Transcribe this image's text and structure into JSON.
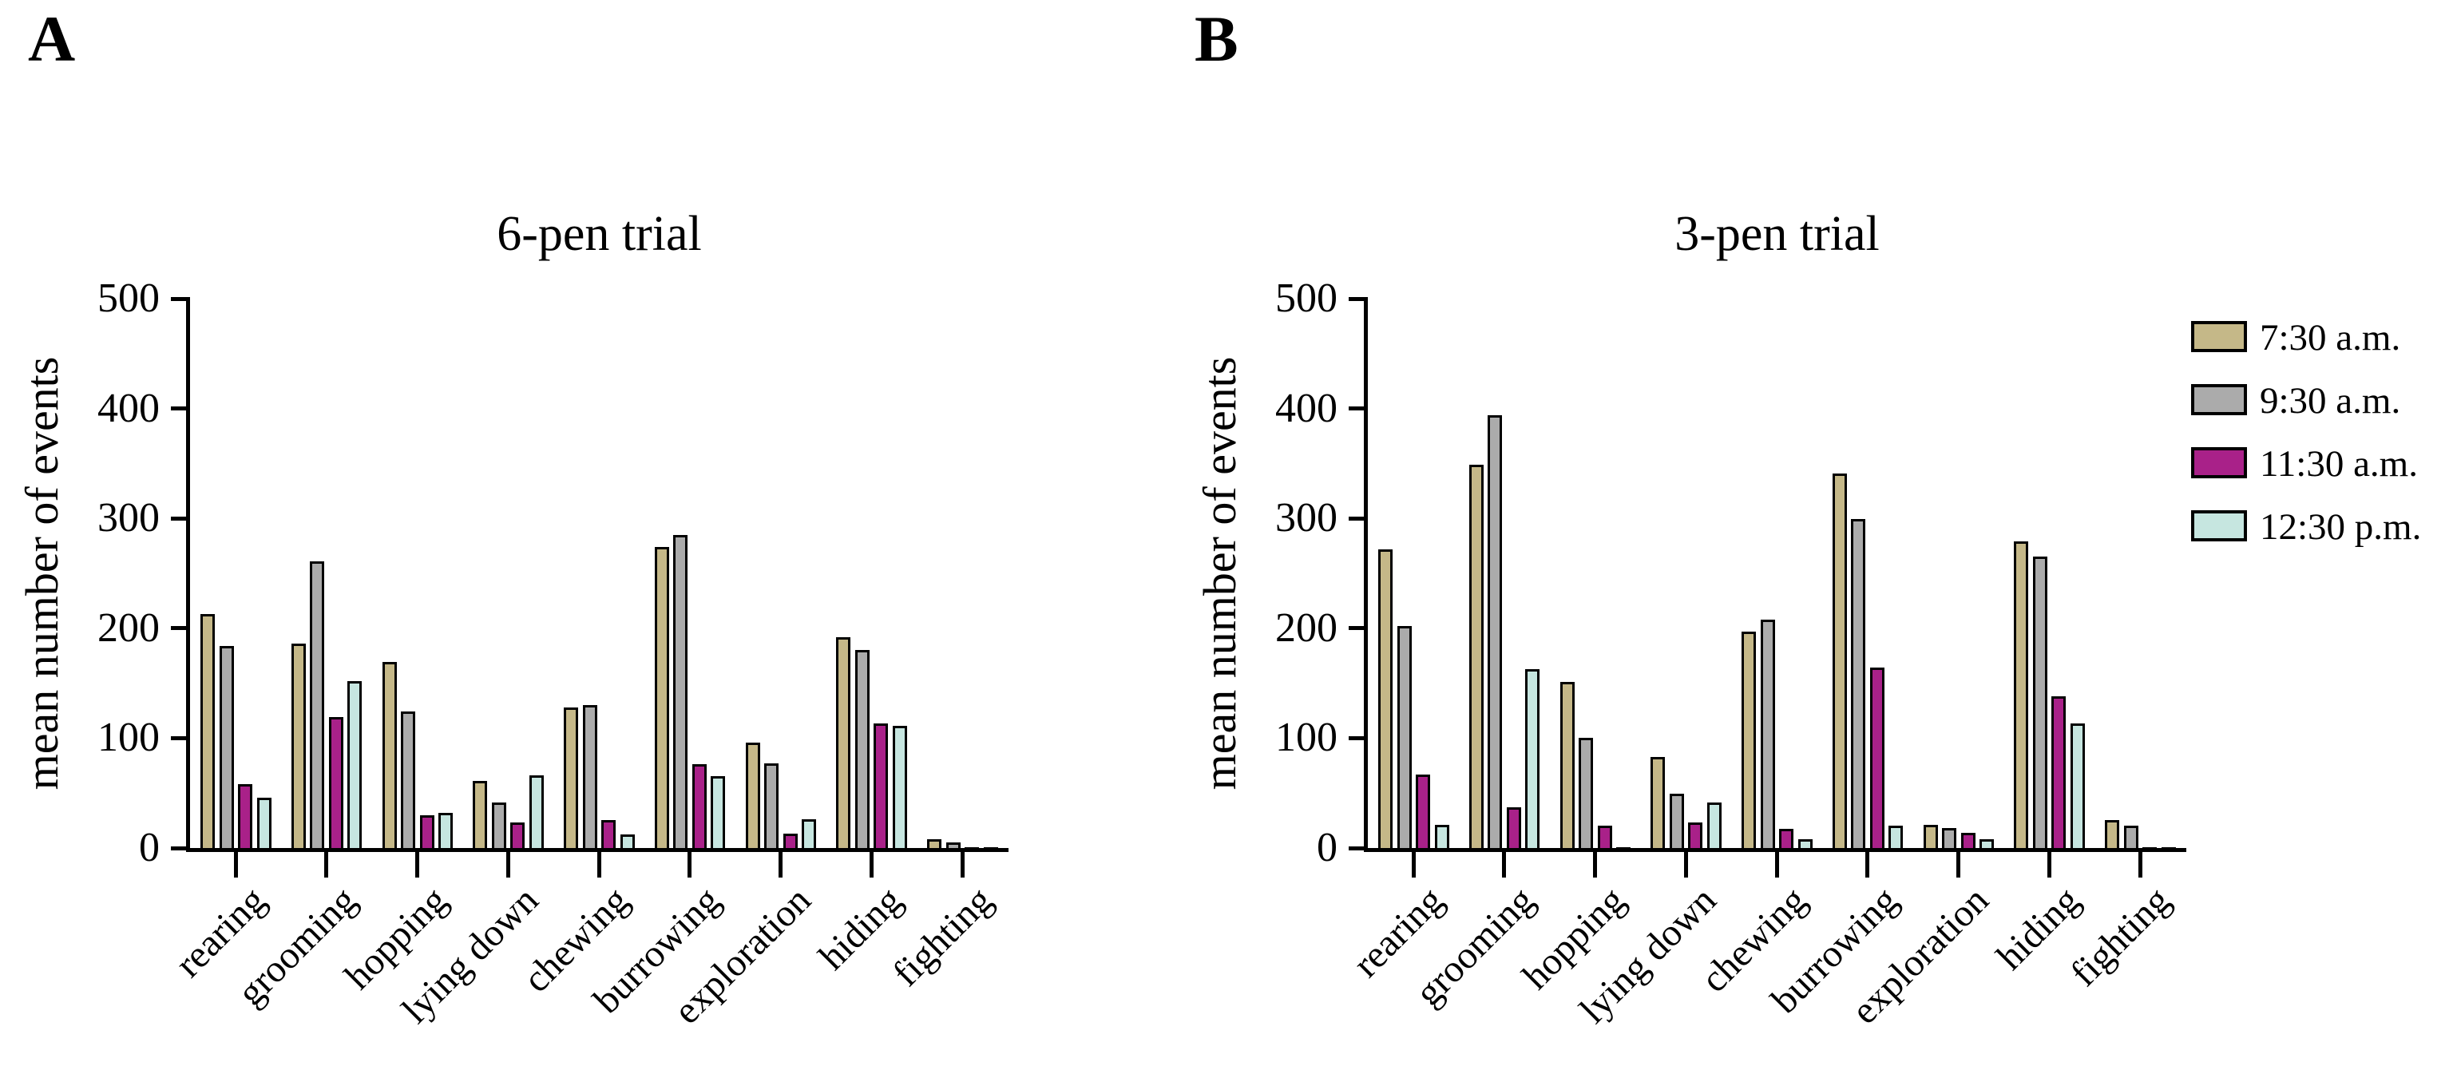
{
  "figure": {
    "panel_a_letter": "A",
    "panel_b_letter": "B"
  },
  "legend": {
    "position": "right of panel B",
    "entries": [
      {
        "label": "7:30 a.m.",
        "color": "#C5B888"
      },
      {
        "label": "9:30 a.m.",
        "color": "#ABABAB"
      },
      {
        "label": "11:30 a.m.",
        "color": "#A92189"
      },
      {
        "label": "12:30 p.m.",
        "color": "#C6E6E0"
      }
    ]
  },
  "chart_data": [
    {
      "type": "bar",
      "panel": "A",
      "title": "6-pen trial",
      "xlabel": "",
      "ylabel": "mean number of events",
      "ylim": [
        0,
        500
      ],
      "yticks": [
        0,
        100,
        200,
        300,
        400,
        500
      ],
      "grid": false,
      "legend_shown": false,
      "categories": [
        "rearing",
        "grooming",
        "hopping",
        "lying down",
        "chewing",
        "burrowing",
        "exploration",
        "hiding",
        "fighting"
      ],
      "series": [
        {
          "name": "7:30 a.m.",
          "color": "#C5B888",
          "values": [
            216,
            189,
            172,
            64,
            131,
            277,
            99,
            195,
            11
          ]
        },
        {
          "name": "9:30 a.m.",
          "color": "#ABABAB",
          "values": [
            187,
            264,
            127,
            44,
            133,
            288,
            80,
            183,
            8
          ]
        },
        {
          "name": "11:30 a.m.",
          "color": "#A92189",
          "values": [
            61,
            122,
            33,
            26,
            28,
            79,
            16,
            116,
            1
          ]
        },
        {
          "name": "12:30 p.m.",
          "color": "#C6E6E0",
          "values": [
            49,
            155,
            35,
            69,
            15,
            68,
            29,
            114,
            2
          ]
        }
      ]
    },
    {
      "type": "bar",
      "panel": "B",
      "title": "3-pen trial",
      "xlabel": "",
      "ylabel": "mean number of events",
      "ylim": [
        0,
        500
      ],
      "yticks": [
        0,
        100,
        200,
        300,
        400,
        500
      ],
      "grid": false,
      "legend_shown": true,
      "categories": [
        "rearing",
        "grooming",
        "hopping",
        "lying down",
        "chewing",
        "burrowing",
        "exploration",
        "hiding",
        "fighting"
      ],
      "series": [
        {
          "name": "7:30 a.m.",
          "color": "#C5B888",
          "values": [
            275,
            352,
            154,
            86,
            200,
            344,
            24,
            282,
            28
          ]
        },
        {
          "name": "9:30 a.m.",
          "color": "#ABABAB",
          "values": [
            205,
            397,
            103,
            52,
            211,
            302,
            21,
            268,
            23
          ]
        },
        {
          "name": "11:30 a.m.",
          "color": "#A92189",
          "values": [
            70,
            40,
            23,
            26,
            20,
            167,
            17,
            141,
            2
          ]
        },
        {
          "name": "12:30 p.m.",
          "color": "#C6E6E0",
          "values": [
            24,
            166,
            2,
            44,
            11,
            23,
            11,
            116,
            1
          ]
        }
      ]
    }
  ]
}
